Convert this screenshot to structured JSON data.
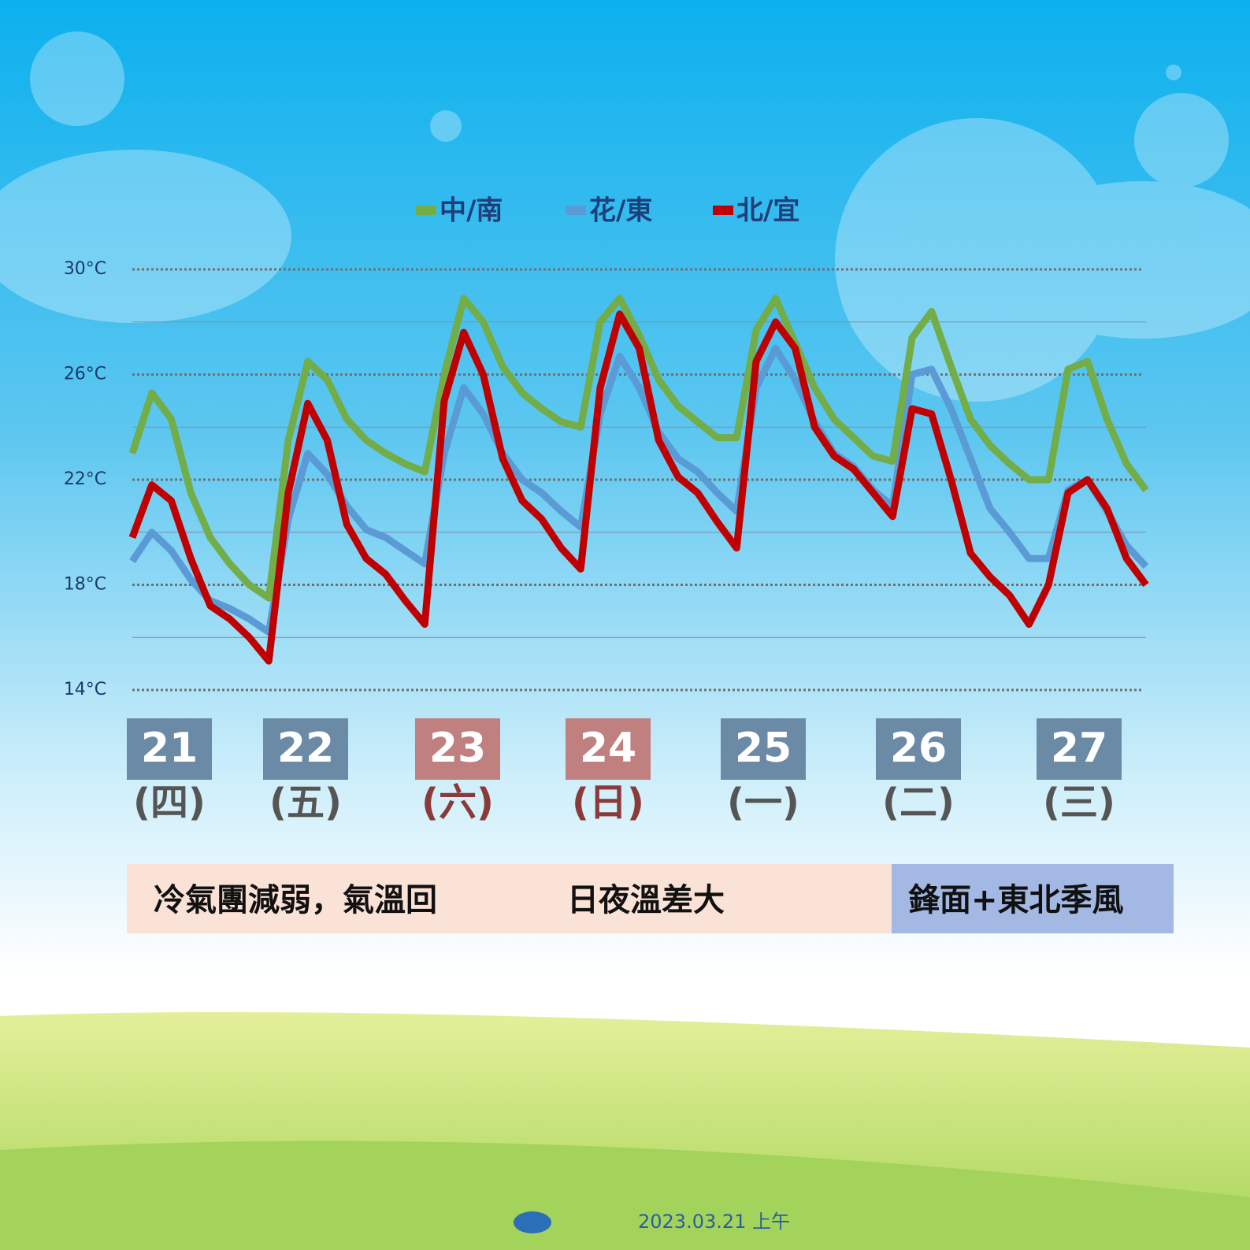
{
  "chart_data": {
    "type": "line",
    "legend": "top",
    "ylim": [
      14,
      30
    ],
    "yticks": [
      {
        "value": 14,
        "label": "14°C"
      },
      {
        "value": 18,
        "label": "18°C"
      },
      {
        "value": 22,
        "label": "22°C"
      },
      {
        "value": 26,
        "label": "26°C"
      },
      {
        "value": 30,
        "label": "30°C"
      }
    ],
    "minor_yticks": [
      16,
      20,
      24,
      28
    ],
    "categories": [
      null,
      null,
      null,
      null,
      null,
      null,
      null,
      null,
      null,
      null,
      null,
      null,
      null,
      null,
      null,
      null,
      null,
      null,
      null,
      null,
      null,
      null,
      null,
      null,
      null,
      null,
      null,
      null,
      null,
      null,
      null,
      null,
      null,
      null,
      null,
      null,
      null,
      null,
      null,
      null,
      null,
      null,
      null,
      null,
      null,
      null,
      null,
      null,
      null,
      null,
      null,
      null,
      null
    ],
    "series": [
      {
        "name": "中/南",
        "color": "#72ad47",
        "values": [
          23.0,
          25.3,
          24.3,
          21.5,
          19.8,
          18.8,
          18.0,
          17.5,
          23.5,
          26.5,
          25.8,
          24.3,
          23.5,
          23.0,
          22.6,
          22.3,
          26.0,
          28.9,
          28.0,
          26.3,
          25.3,
          24.7,
          24.2,
          24.0,
          28.0,
          28.9,
          27.5,
          25.8,
          24.8,
          24.2,
          23.6,
          23.6,
          27.7,
          28.9,
          27.2,
          25.5,
          24.3,
          23.6,
          22.9,
          22.7,
          27.4,
          28.4,
          26.3,
          24.3,
          23.3,
          22.6,
          22.0,
          22.0,
          26.2,
          26.5,
          24.3,
          22.6,
          21.6
        ]
      },
      {
        "name": "花/東",
        "color": "#5b9bd5",
        "values": [
          18.9,
          20.0,
          19.3,
          18.2,
          17.4,
          17.1,
          16.7,
          16.2,
          20.5,
          23.0,
          22.2,
          21.0,
          20.1,
          19.8,
          19.3,
          18.8,
          23.0,
          25.5,
          24.5,
          23.0,
          22.0,
          21.5,
          20.8,
          20.2,
          24.5,
          26.7,
          25.5,
          23.8,
          22.8,
          22.3,
          21.5,
          20.8,
          25.5,
          27.0,
          25.8,
          24.2,
          23.0,
          22.5,
          21.6,
          21.0,
          26.0,
          26.2,
          24.7,
          22.8,
          20.9,
          20.0,
          19.0,
          19.0,
          21.6,
          22.0,
          20.8,
          19.5,
          18.7
        ]
      },
      {
        "name": "北/宜",
        "color": "#c00000",
        "values": [
          19.8,
          21.8,
          21.2,
          19.0,
          17.2,
          16.7,
          16.0,
          15.1,
          21.5,
          24.9,
          23.5,
          20.3,
          19.0,
          18.4,
          17.4,
          16.5,
          25.0,
          27.6,
          26.0,
          22.8,
          21.2,
          20.5,
          19.4,
          18.6,
          25.5,
          28.3,
          27.0,
          23.5,
          22.1,
          21.5,
          20.4,
          19.4,
          26.5,
          28.0,
          27.0,
          24.0,
          22.9,
          22.4,
          21.5,
          20.6,
          24.7,
          24.5,
          22.0,
          19.2,
          18.3,
          17.6,
          16.5,
          18.0,
          21.5,
          22.0,
          20.9,
          19.0,
          18.0
        ]
      }
    ],
    "days": [
      {
        "date": "21",
        "weekday": "(四)",
        "color": "#6b8aa6",
        "text_color": "#555555"
      },
      {
        "date": "22",
        "weekday": "(五)",
        "color": "#6b8aa6",
        "text_color": "#555555"
      },
      {
        "date": "23",
        "weekday": "(六)",
        "color": "#c08080",
        "text_color": "#8b3a3a"
      },
      {
        "date": "24",
        "weekday": "(日)",
        "color": "#c08080",
        "text_color": "#8b3a3a"
      },
      {
        "date": "25",
        "weekday": "(一)",
        "color": "#6b8aa6",
        "text_color": "#555555"
      },
      {
        "date": "26",
        "weekday": "(二)",
        "color": "#6b8aa6",
        "text_color": "#555555"
      },
      {
        "date": "27",
        "weekday": "(三)",
        "color": "#6b8aa6",
        "text_color": "#555555"
      }
    ]
  },
  "notes": [
    {
      "texts": [
        "冷氣團減弱，氣溫回",
        "日夜溫差大"
      ],
      "color": "#fbe2d6"
    },
    {
      "texts": [
        "鋒面+東北季風"
      ],
      "color": "#a3b8e2"
    }
  ],
  "footer": "2023.03.21 上午"
}
